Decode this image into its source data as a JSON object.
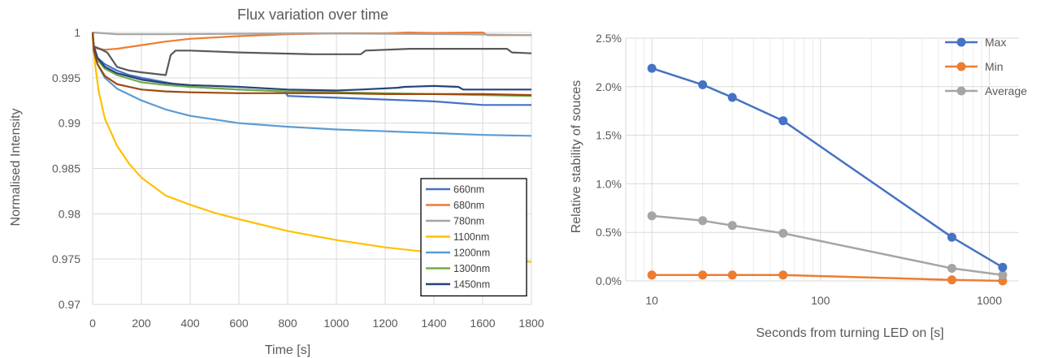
{
  "chart_data": [
    {
      "type": "line",
      "title": "Flux variation over time",
      "xlabel": "Time [s]",
      "ylabel": "Normalised Intensity",
      "xlim": [
        0,
        1800
      ],
      "ylim": [
        0.97,
        1.0
      ],
      "x_ticks": [
        0,
        200,
        400,
        600,
        800,
        1000,
        1200,
        1400,
        1600,
        1800
      ],
      "y_ticks": [
        0.97,
        0.975,
        0.98,
        0.985,
        0.99,
        0.995,
        1
      ],
      "y_tick_labels": [
        "0.97",
        "0.975",
        "0.98",
        "0.985",
        "0.99",
        "0.995",
        "1"
      ],
      "grid": true,
      "legend": "bottom-right",
      "series": [
        {
          "name": "660nm",
          "color": "#4472c4",
          "points": [
            [
              0,
              1.0
            ],
            [
              5,
              0.998
            ],
            [
              20,
              0.9972
            ],
            [
              50,
              0.9965
            ],
            [
              100,
              0.9958
            ],
            [
              150,
              0.9953
            ],
            [
              200,
              0.995
            ],
            [
              300,
              0.9945
            ],
            [
              400,
              0.994
            ],
            [
              600,
              0.9937
            ],
            [
              790,
              0.9935
            ],
            [
              800,
              0.993
            ],
            [
              1000,
              0.9928
            ],
            [
              1200,
              0.9926
            ],
            [
              1400,
              0.9924
            ],
            [
              1500,
              0.9922
            ],
            [
              1600,
              0.992
            ],
            [
              1800,
              0.992
            ]
          ]
        },
        {
          "name": "680nm",
          "color": "#ed7d31",
          "points": [
            [
              0,
              1.0
            ],
            [
              5,
              0.9985
            ],
            [
              20,
              0.9982
            ],
            [
              50,
              0.9981
            ],
            [
              100,
              0.9982
            ],
            [
              200,
              0.9986
            ],
            [
              300,
              0.999
            ],
            [
              400,
              0.9993
            ],
            [
              600,
              0.9996
            ],
            [
              800,
              0.9998
            ],
            [
              1000,
              0.9999
            ],
            [
              1200,
              0.9999
            ],
            [
              1300,
              1.0
            ],
            [
              1400,
              0.99995
            ],
            [
              1600,
              1.0
            ],
            [
              1620,
              0.9997
            ],
            [
              1800,
              0.9997
            ]
          ]
        },
        {
          "name": "780nm",
          "color": "#a5a5a5",
          "points": [
            [
              0,
              1.0
            ],
            [
              100,
              0.9998
            ],
            [
              300,
              0.9998
            ],
            [
              600,
              0.99985
            ],
            [
              900,
              0.9999
            ],
            [
              1200,
              0.99985
            ],
            [
              1500,
              0.9998
            ],
            [
              1800,
              0.9997
            ]
          ]
        },
        {
          "name": "1100nm",
          "color": "#ffc000",
          "points": [
            [
              0,
              0.9995
            ],
            [
              10,
              0.9965
            ],
            [
              25,
              0.9935
            ],
            [
              50,
              0.9905
            ],
            [
              100,
              0.9875
            ],
            [
              150,
              0.9855
            ],
            [
              200,
              0.984
            ],
            [
              300,
              0.982
            ],
            [
              400,
              0.981
            ],
            [
              500,
              0.9801
            ],
            [
              600,
              0.9794
            ],
            [
              800,
              0.9781
            ],
            [
              1000,
              0.9771
            ],
            [
              1200,
              0.9763
            ],
            [
              1400,
              0.9757
            ],
            [
              1600,
              0.9751
            ],
            [
              1800,
              0.9747
            ]
          ]
        },
        {
          "name": "1200nm",
          "color": "#5b9bd5",
          "points": [
            [
              0,
              1.0
            ],
            [
              5,
              0.998
            ],
            [
              20,
              0.9965
            ],
            [
              50,
              0.995
            ],
            [
              100,
              0.9938
            ],
            [
              200,
              0.9925
            ],
            [
              300,
              0.9915
            ],
            [
              400,
              0.9908
            ],
            [
              500,
              0.9904
            ],
            [
              600,
              0.99
            ],
            [
              800,
              0.9896
            ],
            [
              1000,
              0.9893
            ],
            [
              1200,
              0.9891
            ],
            [
              1400,
              0.9889
            ],
            [
              1600,
              0.9887
            ],
            [
              1800,
              0.9886
            ]
          ]
        },
        {
          "name": "1300nm",
          "color": "#70ad47",
          "points": [
            [
              0,
              1.0
            ],
            [
              5,
              0.998
            ],
            [
              20,
              0.997
            ],
            [
              50,
              0.996
            ],
            [
              100,
              0.9953
            ],
            [
              200,
              0.9945
            ],
            [
              300,
              0.9942
            ],
            [
              400,
              0.994
            ],
            [
              600,
              0.9937
            ],
            [
              800,
              0.9935
            ],
            [
              1000,
              0.9934
            ],
            [
              1200,
              0.9933
            ],
            [
              1400,
              0.9932
            ],
            [
              1600,
              0.9931
            ],
            [
              1800,
              0.993
            ]
          ]
        },
        {
          "name": "1450nm",
          "color": "#264478",
          "points": [
            [
              0,
              1.0
            ],
            [
              5,
              0.9985
            ],
            [
              20,
              0.9972
            ],
            [
              50,
              0.9962
            ],
            [
              100,
              0.9955
            ],
            [
              200,
              0.9948
            ],
            [
              300,
              0.9944
            ],
            [
              400,
              0.9942
            ],
            [
              600,
              0.994
            ],
            [
              800,
              0.9937
            ],
            [
              1000,
              0.9936
            ],
            [
              1100,
              0.9937
            ],
            [
              1250,
              0.9939
            ],
            [
              1280,
              0.994
            ],
            [
              1400,
              0.9941
            ],
            [
              1500,
              0.994
            ],
            [
              1520,
              0.9937
            ],
            [
              1800,
              0.9937
            ]
          ]
        },
        {
          "name": "",
          "color": "#595959",
          "points": [
            [
              0,
              0.9985
            ],
            [
              30,
              0.9982
            ],
            [
              60,
              0.9978
            ],
            [
              100,
              0.9962
            ],
            [
              150,
              0.9958
            ],
            [
              200,
              0.9956
            ],
            [
              300,
              0.9953
            ],
            [
              320,
              0.9975
            ],
            [
              340,
              0.998
            ],
            [
              400,
              0.998
            ],
            [
              600,
              0.9978
            ],
            [
              900,
              0.9976
            ],
            [
              1100,
              0.9976
            ],
            [
              1120,
              0.998
            ],
            [
              1300,
              0.9982
            ],
            [
              1500,
              0.9982
            ],
            [
              1700,
              0.9982
            ],
            [
              1720,
              0.9978
            ],
            [
              1800,
              0.9977
            ]
          ]
        },
        {
          "name": "",
          "color": "#9e480e",
          "points": [
            [
              0,
              1.0
            ],
            [
              5,
              0.998
            ],
            [
              20,
              0.9965
            ],
            [
              50,
              0.9952
            ],
            [
              100,
              0.9943
            ],
            [
              200,
              0.9937
            ],
            [
              300,
              0.9935
            ],
            [
              400,
              0.9934
            ],
            [
              600,
              0.9933
            ],
            [
              800,
              0.9933
            ],
            [
              1000,
              0.9933
            ],
            [
              1200,
              0.9932
            ],
            [
              1400,
              0.9932
            ],
            [
              1600,
              0.9932
            ],
            [
              1800,
              0.9931
            ]
          ]
        }
      ]
    },
    {
      "type": "line",
      "xlabel": "Seconds from turning LED on [s]",
      "ylabel": "Relative stability of souces",
      "x_scale": "log",
      "xlim": [
        10,
        1200
      ],
      "ylim": [
        0,
        0.025
      ],
      "x_ticks": [
        10,
        100,
        1000
      ],
      "x_tick_labels": [
        "10",
        "100",
        "1000"
      ],
      "y_ticks": [
        0,
        0.005,
        0.01,
        0.015,
        0.02,
        0.025
      ],
      "y_tick_labels": [
        "0.0%",
        "0.5%",
        "1.0%",
        "1.5%",
        "2.0%",
        "2.5%"
      ],
      "grid": true,
      "legend": "top-right",
      "x": [
        10,
        20,
        30,
        60,
        600,
        1200
      ],
      "series": [
        {
          "name": "Max",
          "color": "#4472c4",
          "values": [
            0.0219,
            0.0202,
            0.0189,
            0.0165,
            0.0045,
            0.0014
          ]
        },
        {
          "name": "Min",
          "color": "#ed7d31",
          "values": [
            0.0006,
            0.0006,
            0.0006,
            0.0006,
            0.0001,
            0.0
          ]
        },
        {
          "name": "Average",
          "color": "#a5a5a5",
          "values": [
            0.0067,
            0.0062,
            0.0057,
            0.0049,
            0.0013,
            0.0006
          ]
        }
      ]
    }
  ]
}
